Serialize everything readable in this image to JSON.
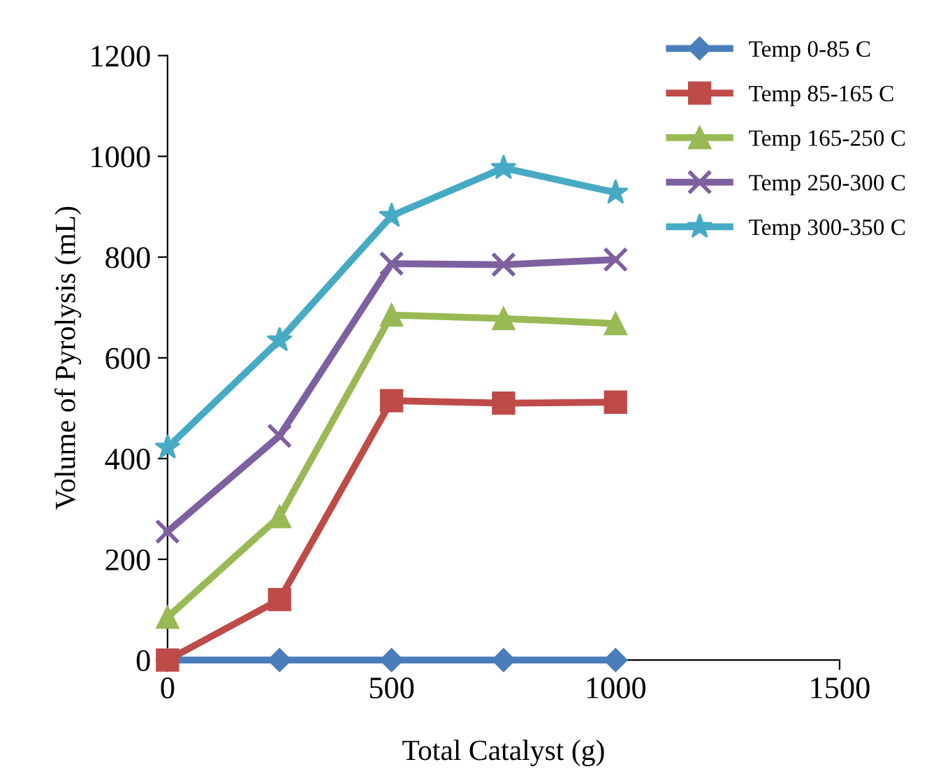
{
  "chart_data": {
    "type": "line",
    "xlabel": "Total Catalyst (g)",
    "ylabel": "Volume of Pyrolysis (mL)",
    "x": [
      0,
      250,
      500,
      750,
      1000
    ],
    "series": [
      {
        "name": "Temp 0-85 C",
        "color": "#4a7ebb",
        "marker": "diamond",
        "values": [
          0,
          0,
          0,
          0,
          0
        ]
      },
      {
        "name": "Temp 85-165 C",
        "color": "#be4b48",
        "marker": "square",
        "values": [
          0,
          120,
          515,
          510,
          512
        ]
      },
      {
        "name": "Temp 165-250 C",
        "color": "#98b954",
        "marker": "triangle",
        "values": [
          85,
          285,
          685,
          678,
          668
        ]
      },
      {
        "name": "Temp 250-300 C",
        "color": "#7d60a0",
        "marker": "cross",
        "values": [
          255,
          445,
          787,
          785,
          795
        ]
      },
      {
        "name": "Temp 300-350 C",
        "color": "#46aac5",
        "marker": "star",
        "values": [
          422,
          635,
          882,
          977,
          928
        ]
      }
    ],
    "xlim": [
      0,
      1500
    ],
    "xticks": [
      0,
      500,
      1000,
      1500
    ],
    "ylim": [
      0,
      1200
    ],
    "yticks": [
      0,
      200,
      400,
      600,
      800,
      1000,
      1200
    ],
    "legend": "top right",
    "line_style": "solid",
    "grid": false
  }
}
